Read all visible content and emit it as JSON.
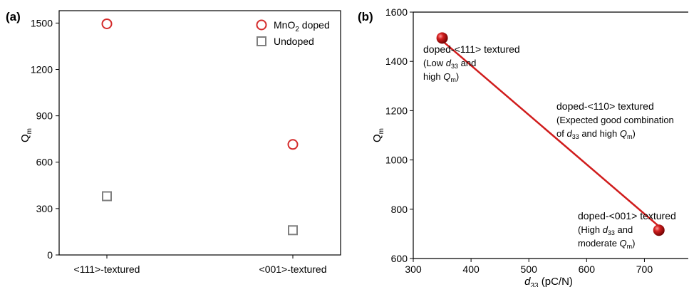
{
  "chart_data": [
    {
      "panel": "(a)",
      "type": "scatter",
      "categories": [
        "<111>-textured",
        "<001>-textured"
      ],
      "ylabel": "Q",
      "ylabel_sub": "m",
      "ylim": [
        0,
        1580
      ],
      "yticks": [
        0,
        300,
        600,
        900,
        1200,
        1500
      ],
      "series": [
        {
          "name_main": "MnO",
          "name_sub": "2",
          "name_rest": " doped",
          "marker": "circle",
          "color": "#d42a2a",
          "values": [
            1495,
            715
          ]
        },
        {
          "name": "Undoped",
          "marker": "square",
          "color": "#7f7f7f",
          "values": [
            380,
            160
          ]
        }
      ],
      "legend": "top-right"
    },
    {
      "panel": "(b)",
      "type": "scatter",
      "xlabel": "d",
      "xlabel_sub": "33",
      "xlabel_unit": " (pC/N)",
      "ylabel": "Q",
      "ylabel_sub": "m",
      "xlim": [
        300,
        750
      ],
      "ylim": [
        600,
        1600
      ],
      "xticks": [
        300,
        400,
        500,
        600,
        700
      ],
      "yticks": [
        600,
        800,
        1000,
        1200,
        1400,
        1600
      ],
      "points": [
        {
          "x": 350,
          "y": 1495
        },
        {
          "x": 725,
          "y": 715
        }
      ],
      "trend_line": {
        "x": [
          352,
          723
        ],
        "y": [
          1480,
          735
        ],
        "color": "#d01c1c"
      },
      "annotations": [
        {
          "title": "doped-<111> textured",
          "line2": [
            "(Low ",
            "d",
            "33",
            " and"
          ],
          "line3": [
            "high ",
            "Q",
            "m",
            ")"
          ]
        },
        {
          "title": "doped-<110> textured",
          "line2": [
            "(Expected good combination"
          ],
          "line3": [
            "of ",
            "d",
            "33",
            " and high ",
            "Q",
            "m",
            ")"
          ]
        },
        {
          "title": "doped-<001> textured",
          "line2": [
            "(High ",
            "d",
            "33",
            " and"
          ],
          "line3": [
            "moderate ",
            "Q",
            "m",
            ")"
          ]
        }
      ],
      "point_color": "#c81818"
    }
  ]
}
